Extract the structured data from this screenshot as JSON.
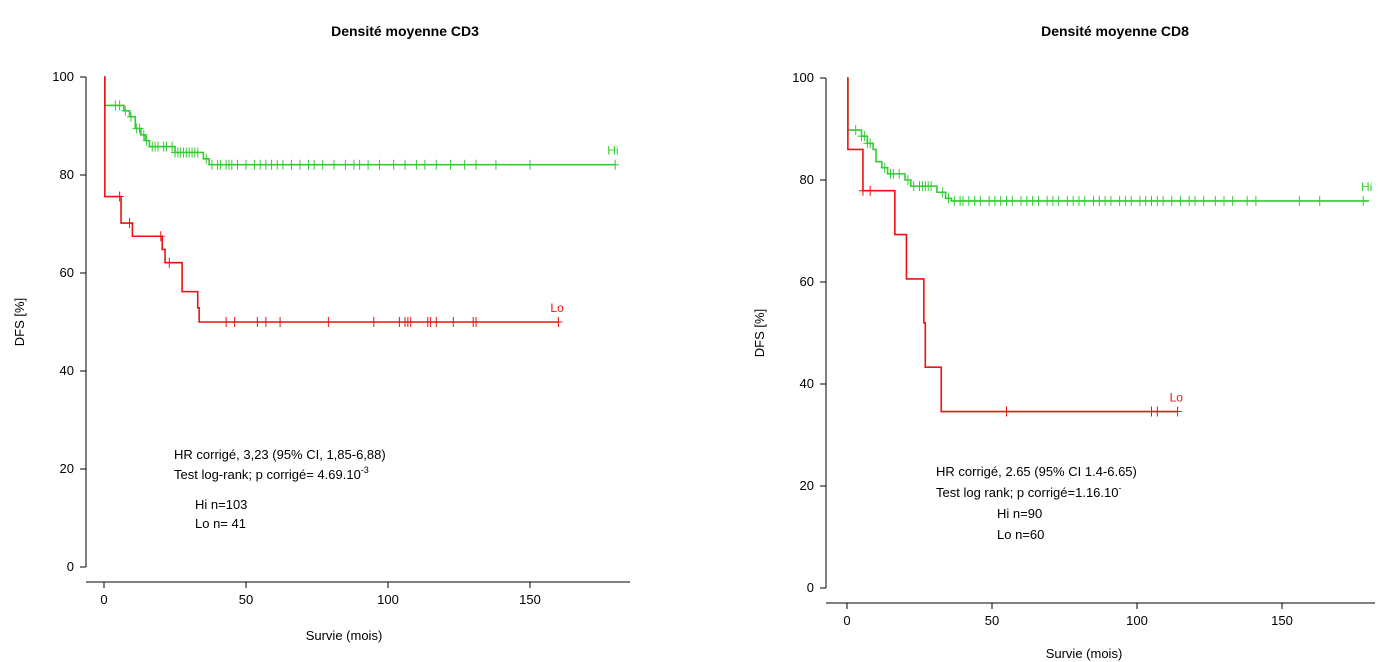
{
  "chart_data": [
    {
      "type": "line",
      "title": "Densité moyenne CD3",
      "xlabel": "Survie (mois)",
      "ylabel": "DFS [%]",
      "xlim": [
        0,
        180
      ],
      "ylim": [
        0,
        100
      ],
      "xticks": [
        "0",
        "50",
        "100",
        "150"
      ],
      "yticks": [
        "0",
        "20",
        "40",
        "60",
        "80",
        "100"
      ],
      "series": [
        {
          "name": "Hi",
          "color": "#33cc33",
          "steps": [
            [
              0,
              100
            ],
            [
              0.3,
              94.2
            ],
            [
              7,
              93.1
            ],
            [
              9,
              91.9
            ],
            [
              11,
              89.5
            ],
            [
              13,
              88.2
            ],
            [
              14.5,
              87.0
            ],
            [
              16,
              85.8
            ],
            [
              23,
              85.8
            ],
            [
              25,
              84.6
            ],
            [
              34,
              84.6
            ],
            [
              35,
              83.3
            ],
            [
              37,
              82.1
            ],
            [
              180,
              82.1
            ]
          ],
          "censored": [
            4,
            5.5,
            7.5,
            9.5,
            11.5,
            12.5,
            14,
            15,
            17,
            18,
            19,
            21,
            22,
            24,
            25,
            26,
            27,
            28,
            29,
            30,
            31,
            32,
            33,
            36,
            38,
            40,
            41,
            43,
            44,
            45,
            47,
            50,
            53,
            55,
            57,
            59,
            61,
            63,
            66,
            69,
            72,
            74,
            77,
            81,
            85,
            88,
            90,
            93,
            97,
            102,
            106,
            110,
            113,
            117,
            122,
            127,
            131,
            138,
            150,
            180
          ],
          "end_label": "Hi"
        },
        {
          "name": "Lo",
          "color": "#ee1111",
          "steps": [
            [
              0,
              100
            ],
            [
              0.3,
              75.6
            ],
            [
              5,
              75.6
            ],
            [
              6,
              70.2
            ],
            [
              10,
              67.5
            ],
            [
              20,
              67.5
            ],
            [
              20.5,
              64.8
            ],
            [
              21.5,
              62.1
            ],
            [
              27,
              62.1
            ],
            [
              27.5,
              56.2
            ],
            [
              32,
              56.2
            ],
            [
              33,
              52.9
            ],
            [
              33.5,
              50.0
            ],
            [
              160,
              50.0
            ]
          ],
          "censored": [
            5.5,
            9,
            20,
            23,
            43,
            46,
            54,
            57,
            62,
            79,
            95,
            104,
            106,
            107,
            108,
            114,
            115,
            117,
            123,
            130,
            131,
            160
          ],
          "end_label": "Lo"
        }
      ],
      "annotations": {
        "hr": "HR corrigé, 3,23 (95% CI, 1,85-6,88)",
        "logrank": "Test log-rank; p corrigé= 4.69.10",
        "logrank_exp": "-3",
        "hi_n": "Hi n=103",
        "lo_n": "Lo n= 41"
      }
    },
    {
      "type": "line",
      "title": "Densité moyenne CD8",
      "xlabel": "Survie (mois)",
      "ylabel": "DFS [%]",
      "xlim": [
        0,
        180
      ],
      "ylim": [
        0,
        100
      ],
      "xticks": [
        "0",
        "50",
        "100",
        "150"
      ],
      "yticks": [
        "0",
        "20",
        "40",
        "60",
        "80",
        "100"
      ],
      "series": [
        {
          "name": "Hi",
          "color": "#33cc33",
          "steps": [
            [
              0,
              100
            ],
            [
              0.3,
              89.8
            ],
            [
              4,
              89.8
            ],
            [
              5,
              88.6
            ],
            [
              7,
              87.2
            ],
            [
              9,
              86.0
            ],
            [
              10,
              83.6
            ],
            [
              12,
              82.4
            ],
            [
              14,
              81.2
            ],
            [
              19,
              81.2
            ],
            [
              20,
              80.0
            ],
            [
              22,
              78.8
            ],
            [
              30,
              78.8
            ],
            [
              31,
              77.6
            ],
            [
              34,
              76.4
            ],
            [
              36,
              75.9
            ],
            [
              180,
              75.9
            ]
          ],
          "censored": [
            3,
            5,
            6,
            7,
            8,
            13,
            15,
            16,
            18,
            21,
            23,
            25,
            26,
            27,
            28,
            29,
            33,
            35,
            37,
            39,
            40,
            42,
            44,
            46,
            49,
            51,
            53,
            55,
            57,
            60,
            62,
            64,
            66,
            69,
            71,
            73,
            76,
            78,
            80,
            82,
            85,
            87,
            89,
            91,
            94,
            96,
            98,
            101,
            103,
            105,
            107,
            109,
            112,
            115,
            118,
            120,
            123,
            127,
            130,
            133,
            138,
            141,
            156,
            163,
            178
          ],
          "end_label": "Hi"
        },
        {
          "name": "Lo",
          "color": "#ee1111",
          "steps": [
            [
              0,
              100
            ],
            [
              0.3,
              86.0
            ],
            [
              5,
              86.0
            ],
            [
              5.5,
              77.9
            ],
            [
              16,
              77.9
            ],
            [
              16.5,
              69.3
            ],
            [
              20,
              69.3
            ],
            [
              20.5,
              60.6
            ],
            [
              26,
              60.6
            ],
            [
              26.5,
              52.0
            ],
            [
              27,
              43.3
            ],
            [
              32,
              43.3
            ],
            [
              32.5,
              34.6
            ],
            [
              114,
              34.6
            ]
          ],
          "censored": [
            5.5,
            8,
            55,
            105,
            107,
            114
          ],
          "end_label": "Lo"
        }
      ],
      "annotations": {
        "hr": "HR corrigé, 2.65 (95% CI 1.4-6.65)",
        "logrank": "Test log rank; p corrigé=1.16.10",
        "logrank_exp": "-",
        "hi_n": "Hi n=90",
        "lo_n": "Lo n=60"
      }
    }
  ]
}
